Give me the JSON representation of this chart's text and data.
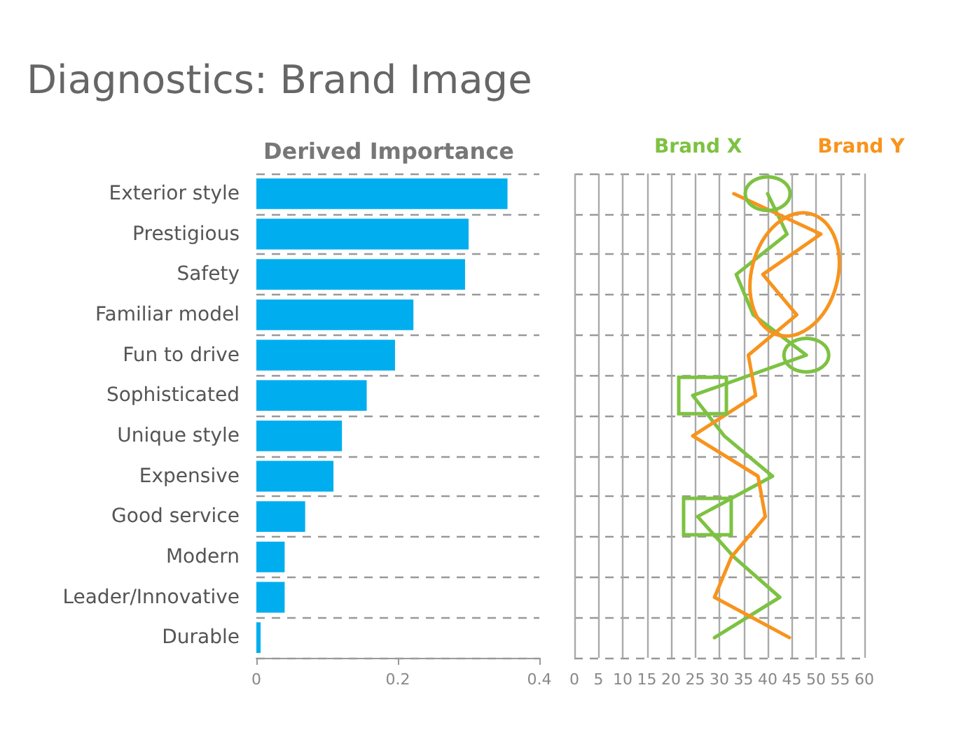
{
  "chart_data": [
    {
      "type": "bar",
      "orientation": "horizontal",
      "title": "Diagnostics: Brand Image",
      "xlabel": "Derived Importance",
      "categories": [
        "Exterior style",
        "Prestigious",
        "Safety",
        "Familiar model",
        "Fun to drive",
        "Sophisticated",
        "Unique style",
        "Expensive",
        "Good service",
        "Modern",
        "Leader/Innovative",
        "Durable"
      ],
      "values": [
        0.355,
        0.3,
        0.295,
        0.222,
        0.196,
        0.156,
        0.121,
        0.109,
        0.069,
        0.04,
        0.04,
        0.006
      ],
      "color": "#00aeef",
      "xlim": [
        0,
        0.4
      ],
      "xticks": [
        0,
        0.2,
        0.4
      ],
      "grid": "y",
      "legend": false
    },
    {
      "type": "line",
      "orientation": "horizontal",
      "categories": [
        null,
        null,
        null,
        null,
        null,
        null,
        null,
        null,
        null,
        null,
        null,
        null
      ],
      "series": [
        {
          "name": "Brand X",
          "color": "#7dc242",
          "values": [
            40,
            44,
            33.5,
            37,
            48,
            24.5,
            31,
            41,
            25.5,
            33,
            42.5,
            29
          ]
        },
        {
          "name": "Brand Y",
          "color": "#f7941d",
          "values": [
            33,
            51,
            39,
            46,
            36,
            37.5,
            24.5,
            38,
            39.5,
            32.5,
            29,
            44.5
          ]
        }
      ],
      "xlim": [
        0,
        60
      ],
      "xticks": [
        0,
        5,
        10,
        15,
        20,
        25,
        30,
        35,
        40,
        45,
        50,
        55,
        60
      ],
      "grid": true,
      "legend": "top",
      "tick_labels": "x",
      "marker": "none",
      "line_style": "solid"
    }
  ]
}
